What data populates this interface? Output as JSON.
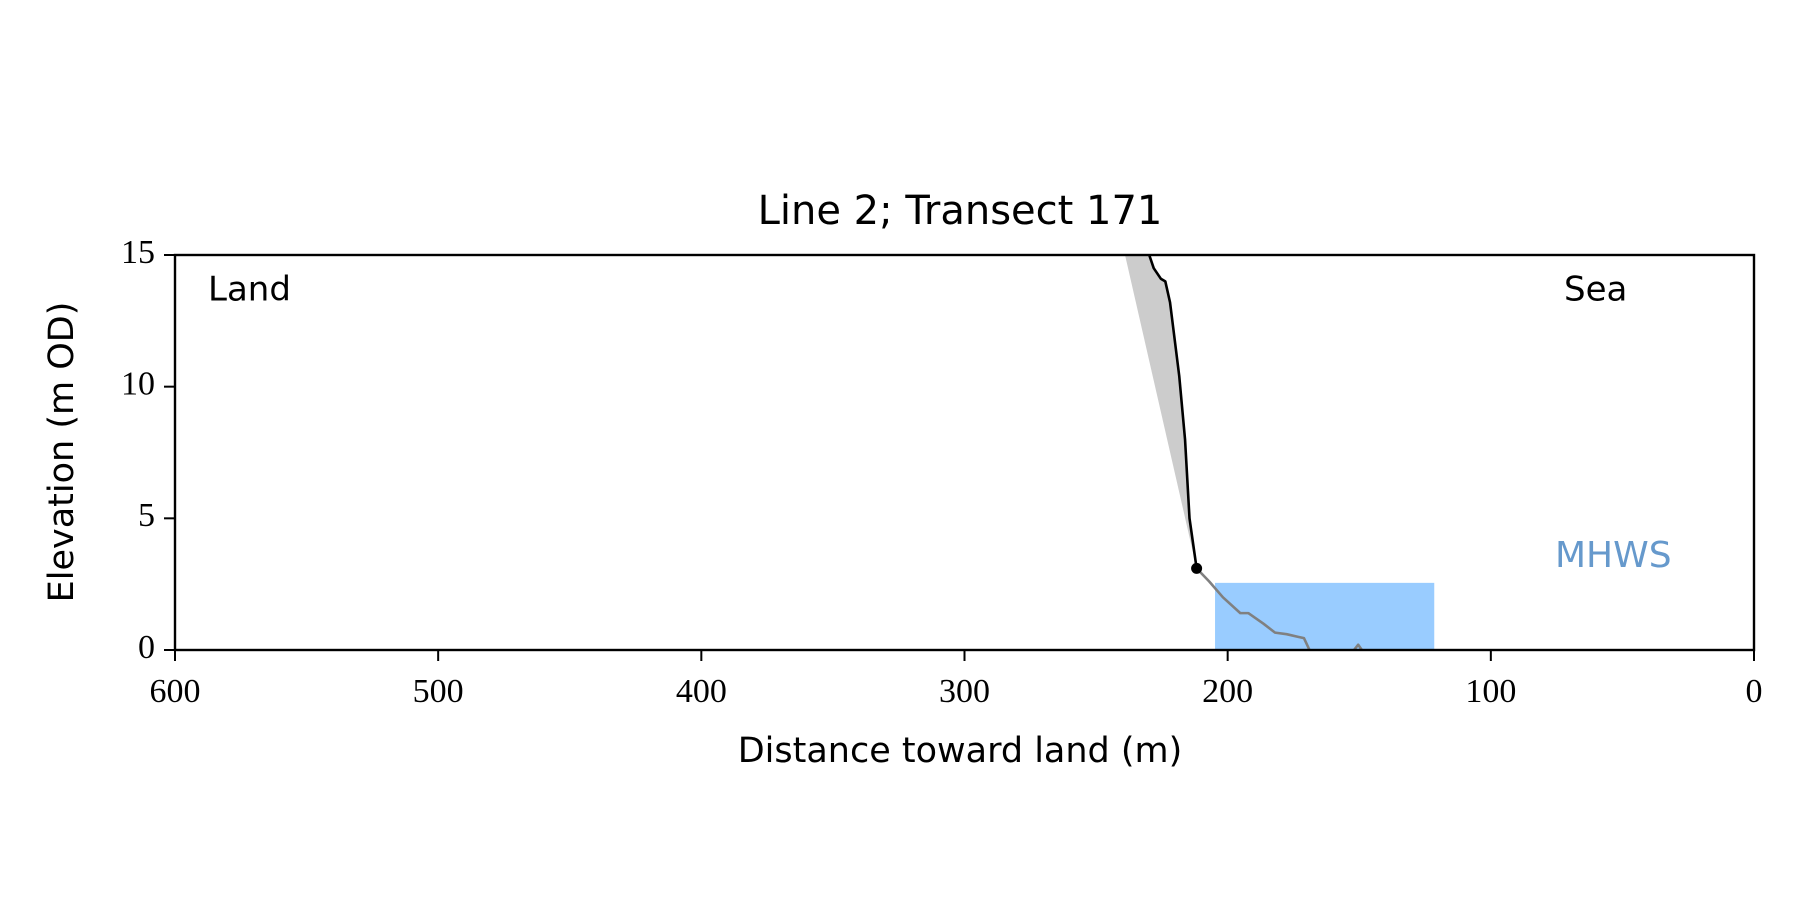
{
  "chart_data": {
    "type": "line",
    "title": "Line 2; Transect 171",
    "xlabel": "Distance toward land (m)",
    "ylabel": "Elevation (m OD)",
    "xlim": [
      600,
      0
    ],
    "ylim": [
      0,
      15
    ],
    "xticks": [
      600,
      500,
      400,
      300,
      200,
      100,
      0
    ],
    "yticks": [
      0,
      5,
      10,
      15
    ],
    "annotations": [
      "Land",
      "Sea"
    ],
    "series": [
      {
        "color": "#000000",
        "x": [
          229.8,
          228.1,
          225.4,
          223.7,
          221.9,
          218.4,
          216.2,
          214.5,
          211.8
        ],
        "values": [
          15,
          14.5,
          14.1,
          14.0,
          13.2,
          10.4,
          8.0,
          5.0,
          3.1
        ]
      },
      {
        "color": "#808080",
        "x": [
          211.8,
          207,
          201.8,
          195.2,
          192.1,
          186.4,
          182,
          177.6,
          173.2,
          171,
          168.9,
          null,
          152,
          150.4,
          149
        ],
        "values": [
          3.1,
          2.6,
          2.0,
          1.4,
          1.4,
          1.0,
          0.66,
          0.6,
          0.5,
          0.45,
          0.0,
          null,
          0.0,
          0.2,
          0.0
        ]
      }
    ],
    "toe": {
      "color": "#000000",
      "x": 211.8,
      "y": 3.1
    },
    "shade": {
      "color": "#cccccc",
      "x": [
        239,
        211.8,
        214.5,
        216.2,
        218.4,
        221.9,
        223.7,
        225.4,
        228.1,
        229.8
      ],
      "y": [
        15,
        3.1,
        5.0,
        8.0,
        10.4,
        13.2,
        14.0,
        14.1,
        14.5,
        15
      ]
    },
    "mhws": {
      "label": "MHWS",
      "color": "#99ccff",
      "text_color": "#6699cc",
      "level": 2.55,
      "x": [
        204.8,
        121.5
      ]
    }
  }
}
